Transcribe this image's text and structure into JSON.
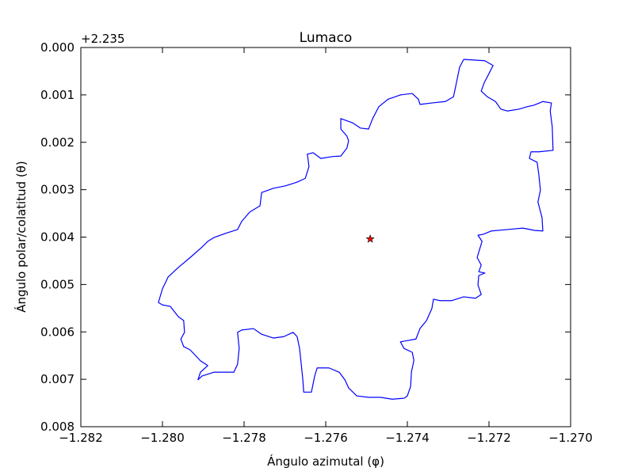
{
  "chart_data": {
    "type": "line",
    "title": "Lumaco",
    "xlabel": "Ángulo azimutal (φ)",
    "ylabel": "Ángulo polar/colatitud (θ)",
    "y_offset_text": "+2.235",
    "xlim": [
      -1.282,
      -1.27
    ],
    "xticks": [
      {
        "value": -1.282,
        "label": "−1.282"
      },
      {
        "value": -1.28,
        "label": "−1.280"
      },
      {
        "value": -1.278,
        "label": "−1.278"
      },
      {
        "value": -1.276,
        "label": "−1.276"
      },
      {
        "value": -1.274,
        "label": "−1.274"
      },
      {
        "value": -1.272,
        "label": "−1.272"
      },
      {
        "value": -1.27,
        "label": "−1.270"
      }
    ],
    "ylim": [
      0.008,
      0
    ],
    "yticks": [
      {
        "value": 0,
        "label": "0.000"
      },
      {
        "value": 0.001,
        "label": "0.001"
      },
      {
        "value": 0.002,
        "label": "0.002"
      },
      {
        "value": 0.003,
        "label": "0.003"
      },
      {
        "value": 0.004,
        "label": "0.004"
      },
      {
        "value": 0.005,
        "label": "0.005"
      },
      {
        "value": 0.006,
        "label": "0.006"
      },
      {
        "value": 0.007,
        "label": "0.007"
      },
      {
        "value": 0.008,
        "label": "0.008"
      }
    ],
    "series": [
      {
        "type": "line",
        "color": "#0000ff",
        "x": [
          -1.27262,
          -1.2721,
          -1.2719,
          -1.272,
          -1.27212,
          -1.27219,
          -1.27204,
          -1.27184,
          -1.27171,
          -1.27155,
          -1.27126,
          -1.27107,
          -1.27091,
          -1.27068,
          -1.27047,
          -1.2705,
          -1.27045,
          -1.27043,
          -1.27078,
          -1.27097,
          -1.27101,
          -1.27082,
          -1.27078,
          -1.27074,
          -1.2708,
          -1.2707,
          -1.27068,
          -1.27087,
          -1.27117,
          -1.27155,
          -1.27194,
          -1.27214,
          -1.27227,
          -1.27217,
          -1.27223,
          -1.27229,
          -1.27219,
          -1.27225,
          -1.2721,
          -1.27225,
          -1.27227,
          -1.27219,
          -1.27233,
          -1.27262,
          -1.27291,
          -1.2732,
          -1.27336,
          -1.2734,
          -1.27353,
          -1.27369,
          -1.27379,
          -1.27398,
          -1.27417,
          -1.27408,
          -1.27388,
          -1.27384,
          -1.2739,
          -1.27392,
          -1.274,
          -1.27408,
          -1.27437,
          -1.27466,
          -1.27495,
          -1.27524,
          -1.27544,
          -1.27553,
          -1.27567,
          -1.27592,
          -1.27621,
          -1.27627,
          -1.27635,
          -1.27654,
          -1.27656,
          -1.2766,
          -1.27664,
          -1.2767,
          -1.2768,
          -1.27703,
          -1.27728,
          -1.27757,
          -1.27777,
          -1.27806,
          -1.27816,
          -1.27812,
          -1.27816,
          -1.27825,
          -1.27874,
          -1.27903,
          -1.27913,
          -1.27907,
          -1.27889,
          -1.27907,
          -1.27932,
          -1.27948,
          -1.27955,
          -1.27946,
          -1.27948,
          -1.27961,
          -1.27981,
          -1.28,
          -1.2801,
          -1.28,
          -1.27986,
          -1.27961,
          -1.27932,
          -1.27903,
          -1.27889,
          -1.27874,
          -1.27845,
          -1.27816,
          -1.27806,
          -1.27786,
          -1.27761,
          -1.27757,
          -1.27728,
          -1.27699,
          -1.2767,
          -1.2765,
          -1.27641,
          -1.27645,
          -1.27631,
          -1.27612,
          -1.27583,
          -1.27563,
          -1.27548,
          -1.27544,
          -1.27548,
          -1.27563,
          -1.27563,
          -1.27534,
          -1.27515,
          -1.27495,
          -1.27485,
          -1.2747,
          -1.27447,
          -1.27417,
          -1.27388,
          -1.27373,
          -1.27369,
          -1.2734,
          -1.27307,
          -1.27287,
          -1.27282,
          -1.27278,
          -1.27272,
          -1.27262
        ],
        "values": [
          0.00025,
          0.00028,
          0.00038,
          0.00055,
          0.00075,
          0.00092,
          0.00104,
          0.00114,
          0.0013,
          0.00134,
          0.0013,
          0.00125,
          0.00122,
          0.00114,
          0.00117,
          0.00134,
          0.00167,
          0.00217,
          0.0022,
          0.0022,
          0.00234,
          0.00242,
          0.00267,
          0.00301,
          0.00326,
          0.00359,
          0.00387,
          0.00386,
          0.00381,
          0.00384,
          0.00387,
          0.00394,
          0.00396,
          0.00409,
          0.00426,
          0.00443,
          0.00459,
          0.00473,
          0.00476,
          0.00481,
          0.00501,
          0.00521,
          0.00529,
          0.00526,
          0.00534,
          0.00534,
          0.00531,
          0.00551,
          0.00576,
          0.00593,
          0.00615,
          0.00618,
          0.00621,
          0.00635,
          0.00643,
          0.0066,
          0.00685,
          0.00715,
          0.00735,
          0.0074,
          0.00742,
          0.00738,
          0.00738,
          0.00735,
          0.00718,
          0.00701,
          0.00685,
          0.00676,
          0.00676,
          0.00693,
          0.00727,
          0.00727,
          0.00701,
          0.00668,
          0.00635,
          0.0061,
          0.00601,
          0.0061,
          0.00613,
          0.00605,
          0.00593,
          0.00596,
          0.00601,
          0.00635,
          0.00668,
          0.00685,
          0.00685,
          0.00693,
          0.00701,
          0.00685,
          0.00671,
          0.00661,
          0.00638,
          0.00631,
          0.00615,
          0.00601,
          0.00576,
          0.00568,
          0.00546,
          0.00543,
          0.00538,
          0.00509,
          0.00484,
          0.00464,
          0.00443,
          0.00421,
          0.00409,
          0.00401,
          0.00392,
          0.00384,
          0.00367,
          0.00347,
          0.00334,
          0.00306,
          0.00297,
          0.00292,
          0.00284,
          0.00276,
          0.00251,
          0.00225,
          0.00222,
          0.00234,
          0.0023,
          0.00229,
          0.00212,
          0.00197,
          0.00187,
          0.00172,
          0.0015,
          0.00159,
          0.0017,
          0.00172,
          0.0015,
          0.00125,
          0.00109,
          0.001,
          0.00097,
          0.00109,
          0.0012,
          0.00117,
          0.00114,
          0.00104,
          0.00084,
          0.00067,
          0.00042,
          0.00025
        ]
      },
      {
        "type": "scatter",
        "marker": "star",
        "color": "#ff0000",
        "x": [
          -1.27491
        ],
        "values": [
          0.00404
        ]
      }
    ]
  }
}
